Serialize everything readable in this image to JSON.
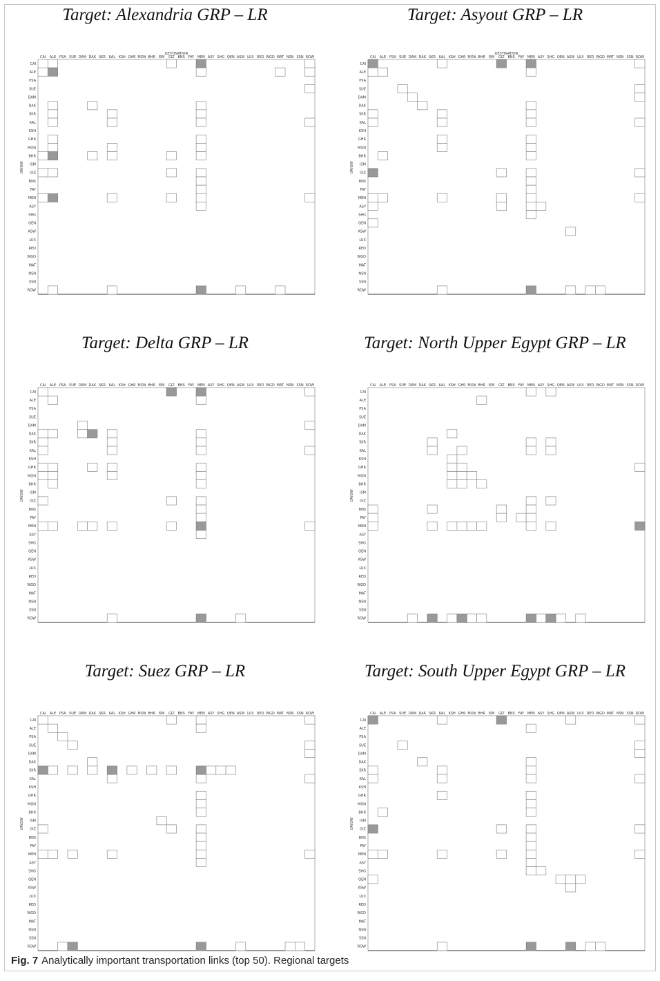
{
  "figure": {
    "label": "Fig. 7",
    "caption": "Analytically important transportation links (top 50). Regional targets"
  },
  "axes": {
    "destination_label": "DESTINATION",
    "origin_label": "ORIGIN",
    "regions": [
      "CAI",
      "ALE",
      "PSA",
      "SUE",
      "DAM",
      "DAK",
      "SKR",
      "KAL",
      "KSH",
      "GHR",
      "MON",
      "BHR",
      "ISM",
      "GIZ",
      "BNS",
      "FAY",
      "MEN",
      "ASY",
      "SHG",
      "QEN",
      "ASW",
      "LUX",
      "RED",
      "WGD",
      "MAT",
      "NSN",
      "SSN",
      "ROW"
    ]
  },
  "colors": {
    "highlight": "#999999",
    "cell_border": "#8c8c8c"
  },
  "chart_data": [
    {
      "type": "heatmap",
      "title": "Target: Alexandria GRP – LR",
      "open": [
        [
          0,
          1
        ],
        [
          0,
          13
        ],
        [
          0,
          27
        ],
        [
          1,
          0
        ],
        [
          1,
          16
        ],
        [
          1,
          24
        ],
        [
          1,
          27
        ],
        [
          3,
          27
        ],
        [
          5,
          1
        ],
        [
          5,
          5
        ],
        [
          5,
          16
        ],
        [
          6,
          1
        ],
        [
          6,
          7
        ],
        [
          6,
          16
        ],
        [
          7,
          1
        ],
        [
          7,
          7
        ],
        [
          7,
          16
        ],
        [
          7,
          27
        ],
        [
          9,
          1
        ],
        [
          9,
          16
        ],
        [
          10,
          1
        ],
        [
          10,
          7
        ],
        [
          10,
          16
        ],
        [
          11,
          0
        ],
        [
          11,
          5
        ],
        [
          11,
          7
        ],
        [
          11,
          13
        ],
        [
          11,
          16
        ],
        [
          13,
          0
        ],
        [
          13,
          1
        ],
        [
          13,
          13
        ],
        [
          13,
          16
        ],
        [
          14,
          16
        ],
        [
          15,
          16
        ],
        [
          16,
          0
        ],
        [
          16,
          7
        ],
        [
          16,
          13
        ],
        [
          16,
          16
        ],
        [
          16,
          27
        ],
        [
          17,
          16
        ],
        [
          27,
          1
        ],
        [
          27,
          7
        ],
        [
          27,
          20
        ],
        [
          27,
          24
        ]
      ],
      "filled": [
        [
          0,
          16
        ],
        [
          1,
          1
        ],
        [
          11,
          1
        ],
        [
          16,
          1
        ],
        [
          27,
          16
        ]
      ]
    },
    {
      "type": "heatmap",
      "title": "Target: Asyout GRP – LR",
      "open": [
        [
          0,
          7
        ],
        [
          0,
          27
        ],
        [
          1,
          0
        ],
        [
          1,
          1
        ],
        [
          1,
          16
        ],
        [
          3,
          3
        ],
        [
          3,
          27
        ],
        [
          4,
          4
        ],
        [
          4,
          27
        ],
        [
          5,
          5
        ],
        [
          5,
          16
        ],
        [
          6,
          0
        ],
        [
          6,
          7
        ],
        [
          6,
          16
        ],
        [
          7,
          0
        ],
        [
          7,
          7
        ],
        [
          7,
          16
        ],
        [
          7,
          27
        ],
        [
          9,
          7
        ],
        [
          9,
          16
        ],
        [
          10,
          7
        ],
        [
          10,
          16
        ],
        [
          11,
          1
        ],
        [
          11,
          16
        ],
        [
          13,
          13
        ],
        [
          13,
          16
        ],
        [
          13,
          27
        ],
        [
          14,
          16
        ],
        [
          15,
          16
        ],
        [
          16,
          0
        ],
        [
          16,
          1
        ],
        [
          16,
          7
        ],
        [
          16,
          13
        ],
        [
          16,
          16
        ],
        [
          16,
          27
        ],
        [
          17,
          0
        ],
        [
          17,
          13
        ],
        [
          17,
          16
        ],
        [
          17,
          17
        ],
        [
          18,
          16
        ],
        [
          19,
          0
        ],
        [
          20,
          20
        ],
        [
          27,
          7
        ],
        [
          27,
          20
        ],
        [
          27,
          22
        ],
        [
          27,
          23
        ]
      ],
      "filled": [
        [
          0,
          0
        ],
        [
          0,
          13
        ],
        [
          0,
          16
        ],
        [
          13,
          0
        ],
        [
          27,
          16
        ]
      ]
    },
    {
      "type": "heatmap",
      "title": "Target: Delta GRP – LR",
      "open": [
        [
          0,
          0
        ],
        [
          0,
          27
        ],
        [
          1,
          1
        ],
        [
          1,
          16
        ],
        [
          4,
          4
        ],
        [
          4,
          27
        ],
        [
          5,
          0
        ],
        [
          5,
          1
        ],
        [
          5,
          4
        ],
        [
          5,
          7
        ],
        [
          5,
          16
        ],
        [
          6,
          0
        ],
        [
          6,
          7
        ],
        [
          6,
          16
        ],
        [
          7,
          0
        ],
        [
          7,
          7
        ],
        [
          7,
          16
        ],
        [
          7,
          27
        ],
        [
          9,
          0
        ],
        [
          9,
          1
        ],
        [
          9,
          5
        ],
        [
          9,
          7
        ],
        [
          9,
          16
        ],
        [
          10,
          0
        ],
        [
          10,
          1
        ],
        [
          10,
          7
        ],
        [
          10,
          16
        ],
        [
          11,
          1
        ],
        [
          11,
          16
        ],
        [
          13,
          0
        ],
        [
          13,
          13
        ],
        [
          13,
          16
        ],
        [
          14,
          16
        ],
        [
          15,
          16
        ],
        [
          16,
          0
        ],
        [
          16,
          1
        ],
        [
          16,
          4
        ],
        [
          16,
          5
        ],
        [
          16,
          7
        ],
        [
          16,
          13
        ],
        [
          16,
          27
        ],
        [
          17,
          16
        ],
        [
          27,
          7
        ],
        [
          27,
          20
        ]
      ],
      "filled": [
        [
          0,
          13
        ],
        [
          0,
          16
        ],
        [
          5,
          5
        ],
        [
          16,
          16
        ],
        [
          27,
          16
        ]
      ]
    },
    {
      "type": "heatmap",
      "title": "Target: North Upper Egypt GRP – LR",
      "open": [
        [
          0,
          16
        ],
        [
          0,
          18
        ],
        [
          1,
          11
        ],
        [
          5,
          8
        ],
        [
          6,
          6
        ],
        [
          6,
          16
        ],
        [
          6,
          18
        ],
        [
          7,
          6
        ],
        [
          7,
          9
        ],
        [
          7,
          16
        ],
        [
          7,
          18
        ],
        [
          8,
          8
        ],
        [
          9,
          8
        ],
        [
          9,
          9
        ],
        [
          9,
          27
        ],
        [
          10,
          8
        ],
        [
          10,
          9
        ],
        [
          10,
          10
        ],
        [
          11,
          8
        ],
        [
          11,
          9
        ],
        [
          11,
          11
        ],
        [
          13,
          16
        ],
        [
          13,
          18
        ],
        [
          14,
          0
        ],
        [
          14,
          6
        ],
        [
          14,
          13
        ],
        [
          14,
          16
        ],
        [
          15,
          0
        ],
        [
          15,
          13
        ],
        [
          15,
          15
        ],
        [
          15,
          16
        ],
        [
          16,
          0
        ],
        [
          16,
          6
        ],
        [
          16,
          8
        ],
        [
          16,
          9
        ],
        [
          16,
          10
        ],
        [
          16,
          11
        ],
        [
          16,
          16
        ],
        [
          16,
          18
        ],
        [
          27,
          4
        ],
        [
          27,
          8
        ],
        [
          27,
          10
        ],
        [
          27,
          11
        ],
        [
          27,
          17
        ],
        [
          27,
          19
        ],
        [
          27,
          21
        ]
      ],
      "filled": [
        [
          16,
          27
        ],
        [
          27,
          6
        ],
        [
          27,
          9
        ],
        [
          27,
          16
        ],
        [
          27,
          18
        ]
      ]
    },
    {
      "type": "heatmap",
      "title": "Target: Suez GRP – LR",
      "open": [
        [
          0,
          0
        ],
        [
          0,
          13
        ],
        [
          0,
          16
        ],
        [
          0,
          27
        ],
        [
          1,
          1
        ],
        [
          1,
          16
        ],
        [
          2,
          2
        ],
        [
          3,
          3
        ],
        [
          3,
          27
        ],
        [
          4,
          27
        ],
        [
          5,
          5
        ],
        [
          6,
          1
        ],
        [
          6,
          3
        ],
        [
          6,
          5
        ],
        [
          6,
          9
        ],
        [
          6,
          11
        ],
        [
          6,
          13
        ],
        [
          6,
          17
        ],
        [
          6,
          18
        ],
        [
          6,
          19
        ],
        [
          7,
          7
        ],
        [
          7,
          16
        ],
        [
          7,
          27
        ],
        [
          9,
          16
        ],
        [
          10,
          16
        ],
        [
          11,
          16
        ],
        [
          12,
          12
        ],
        [
          13,
          0
        ],
        [
          13,
          13
        ],
        [
          13,
          16
        ],
        [
          14,
          16
        ],
        [
          15,
          16
        ],
        [
          16,
          0
        ],
        [
          16,
          1
        ],
        [
          16,
          3
        ],
        [
          16,
          7
        ],
        [
          16,
          16
        ],
        [
          16,
          27
        ],
        [
          17,
          16
        ],
        [
          27,
          2
        ],
        [
          27,
          20
        ],
        [
          27,
          25
        ],
        [
          27,
          26
        ]
      ],
      "filled": [
        [
          6,
          0
        ],
        [
          6,
          7
        ],
        [
          6,
          16
        ],
        [
          27,
          3
        ],
        [
          27,
          16
        ]
      ]
    },
    {
      "type": "heatmap",
      "title": "Target: South Upper Egypt GRP – LR",
      "open": [
        [
          0,
          7
        ],
        [
          0,
          20
        ],
        [
          0,
          27
        ],
        [
          1,
          16
        ],
        [
          3,
          3
        ],
        [
          3,
          27
        ],
        [
          4,
          27
        ],
        [
          5,
          5
        ],
        [
          5,
          16
        ],
        [
          6,
          0
        ],
        [
          6,
          7
        ],
        [
          6,
          16
        ],
        [
          7,
          0
        ],
        [
          7,
          7
        ],
        [
          7,
          16
        ],
        [
          7,
          27
        ],
        [
          9,
          7
        ],
        [
          9,
          16
        ],
        [
          10,
          16
        ],
        [
          11,
          1
        ],
        [
          11,
          16
        ],
        [
          13,
          13
        ],
        [
          13,
          16
        ],
        [
          13,
          27
        ],
        [
          14,
          16
        ],
        [
          15,
          16
        ],
        [
          16,
          0
        ],
        [
          16,
          1
        ],
        [
          16,
          7
        ],
        [
          16,
          13
        ],
        [
          16,
          16
        ],
        [
          16,
          27
        ],
        [
          17,
          16
        ],
        [
          18,
          16
        ],
        [
          18,
          17
        ],
        [
          19,
          0
        ],
        [
          19,
          19
        ],
        [
          19,
          20
        ],
        [
          19,
          21
        ],
        [
          20,
          20
        ],
        [
          27,
          7
        ],
        [
          27,
          22
        ],
        [
          27,
          23
        ]
      ],
      "filled": [
        [
          0,
          0
        ],
        [
          0,
          13
        ],
        [
          13,
          0
        ],
        [
          27,
          16
        ],
        [
          27,
          20
        ]
      ]
    }
  ]
}
